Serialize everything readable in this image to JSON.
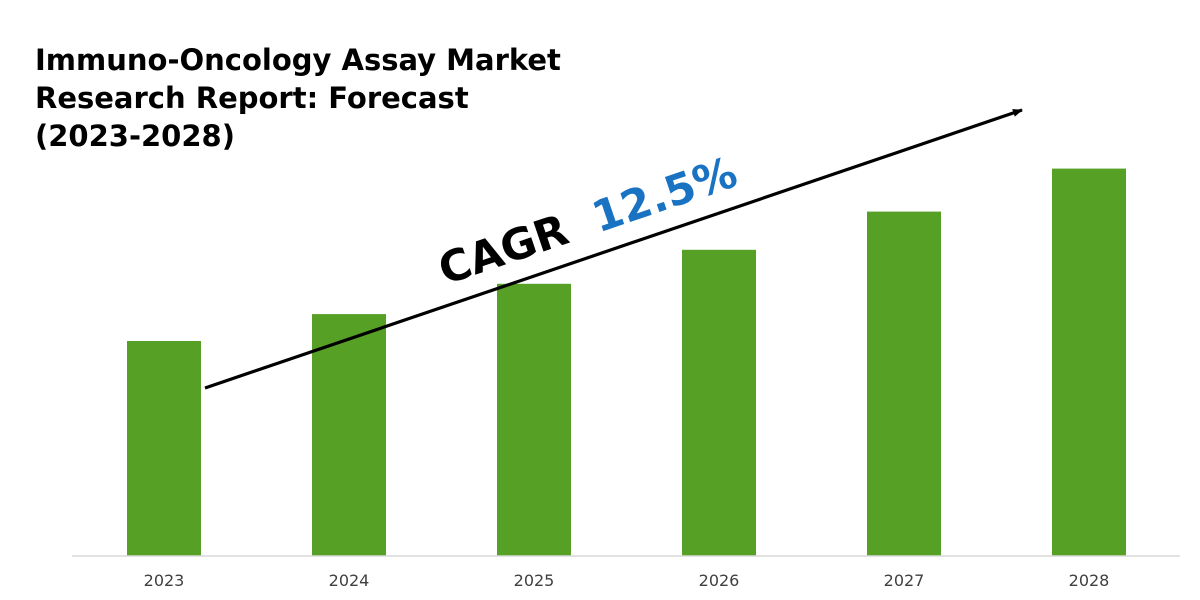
{
  "chart_data": {
    "type": "bar",
    "title_lines": [
      "Immuno-Oncology Assay Market",
      "Research Report: Forecast",
      "(2023-2028)"
    ],
    "categories": [
      "2023",
      "2024",
      "2025",
      "2026",
      "2027",
      "2028"
    ],
    "values": [
      1.0,
      1.125,
      1.266,
      1.424,
      1.602,
      1.802
    ],
    "ylim": [
      0,
      2.0
    ],
    "grid": false,
    "legend": "none",
    "annotation": {
      "label": "CAGR",
      "value": "12.5%"
    },
    "colors": {
      "bar": "#56a026",
      "annotation_value": "#1a73c2",
      "axis": "#d9d9d9",
      "arrow": "#000000"
    }
  }
}
